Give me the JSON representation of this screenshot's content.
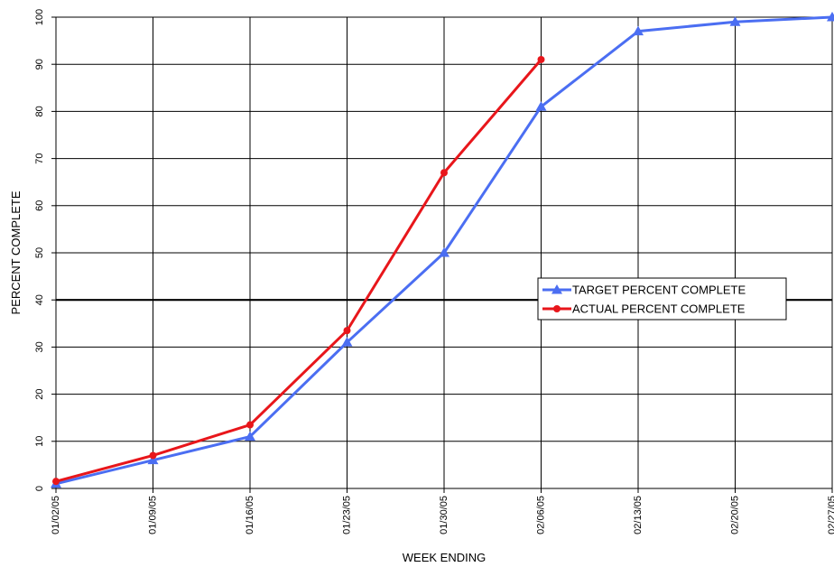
{
  "chart_data": {
    "type": "line",
    "title": "",
    "xlabel": "WEEK ENDING",
    "ylabel": "PERCENT COMPLETE",
    "categories": [
      "01/02/05",
      "01/09/05",
      "01/16/05",
      "01/23/05",
      "01/30/05",
      "02/06/05",
      "02/13/05",
      "02/20/05",
      "02/27/05"
    ],
    "yticks": [
      "0",
      "10",
      "20",
      "30",
      "40",
      "50",
      "60",
      "70",
      "80",
      "90",
      "100"
    ],
    "ylim": [
      0,
      100
    ],
    "grid": true,
    "emphasized_gridline": 40,
    "legend_position": "right-center",
    "series": [
      {
        "name": "TARGET PERCENT COMPLETE",
        "color": "#4B6EF2",
        "marker": "triangle",
        "values": [
          1,
          6,
          11,
          31,
          50,
          81,
          97,
          99,
          100
        ]
      },
      {
        "name": "ACTUAL PERCENT COMPLETE",
        "color": "#E8161B",
        "marker": "circle",
        "values": [
          1.5,
          7,
          13.5,
          33.5,
          67,
          91,
          null,
          null,
          null
        ]
      }
    ]
  }
}
